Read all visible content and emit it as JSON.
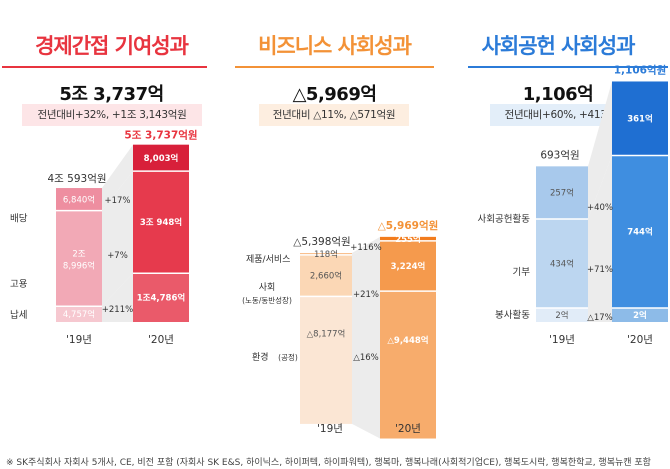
{
  "panels": [
    {
      "title": "경제간접 기여성과",
      "total": "5조 3,737억",
      "change": "전년대비+32%, +1조 3,143억원",
      "accent": "#e8343f",
      "badge_bg": "#fde5e7",
      "x_labels": [
        "'19년",
        "'20년"
      ],
      "year19_total": "4조 593억원",
      "year20_total": "5조 3,737억원",
      "categories": [
        "배당",
        "고용",
        "납세"
      ],
      "category_19": [
        "6,840억",
        "2조 8,996억",
        "4,757억"
      ],
      "category_20": [
        "8,003억",
        "3조 948억",
        "1조4,786억"
      ],
      "growth": [
        "+17%",
        "+7%",
        "+211%"
      ]
    },
    {
      "title": "비즈니스 사회성과",
      "total": "△5,969억",
      "change": "전년대비 △11%, △571억원",
      "accent": "#f39237",
      "badge_bg": "#fdeee0",
      "x_labels": [
        "'19년",
        "'20년"
      ],
      "year19_total": "△5,398억원",
      "year20_total": "△5,969억원",
      "categories": [
        "제품/서비스",
        "사회",
        "(노동/동반성장)",
        "환경",
        "(공정)"
      ],
      "category_19": [
        "118억",
        "2,660억",
        "△8,177억"
      ],
      "category_20": [
        "255억",
        "3,224억",
        "△9,448억"
      ],
      "growth": [
        "+116%",
        "+21%",
        "△16%"
      ]
    },
    {
      "title": "사회공헌 사회성과",
      "total": "1,106억",
      "change": "전년대비+60%, +413억원",
      "accent": "#2b7bd8",
      "badge_bg": "#e3eef9",
      "x_labels": [
        "'19년",
        "'20년"
      ],
      "year19_total": "693억원",
      "year20_total": "1,106억원",
      "categories": [
        "사회공헌활동",
        "기부",
        "봉사활동"
      ],
      "category_19": [
        "257억",
        "434억",
        "2억"
      ],
      "category_20": [
        "361억",
        "744억",
        "2억"
      ],
      "growth": [
        "+40%",
        "+71%",
        "△17%"
      ]
    }
  ],
  "footnote": "※ SK주식회사 자회사 5개사, CE, 비전 포함 (자회사 SK E&S, 하이닉스, 하이퍼텍, 하이파워텍), 행복마, 행복나래(사회적기업CE), 행복도시락, 행복한학교, 행복뉴캔 포함",
  "chart_data": [
    {
      "type": "bar",
      "title": "경제간접 기여성과",
      "categories": [
        "'19년",
        "'20년"
      ],
      "series": [
        {
          "name": "납세",
          "values": [
            4757,
            14786
          ]
        },
        {
          "name": "고용",
          "values": [
            28996,
            30948
          ]
        },
        {
          "name": "배당",
          "values": [
            6840,
            8003
          ]
        }
      ],
      "totals": [
        40593,
        53737
      ],
      "unit": "억원"
    },
    {
      "type": "bar",
      "title": "비즈니스 사회성과",
      "categories": [
        "'19년",
        "'20년"
      ],
      "series": [
        {
          "name": "제품/서비스",
          "values": [
            118,
            255
          ]
        },
        {
          "name": "사회",
          "values": [
            2660,
            3224
          ]
        },
        {
          "name": "환경",
          "values": [
            -8177,
            -9448
          ]
        }
      ],
      "totals": [
        -5398,
        -5969
      ],
      "unit": "억원"
    },
    {
      "type": "bar",
      "title": "사회공헌 사회성과",
      "categories": [
        "'19년",
        "'20년"
      ],
      "series": [
        {
          "name": "봉사활동",
          "values": [
            2,
            2
          ]
        },
        {
          "name": "기부",
          "values": [
            434,
            744
          ]
        },
        {
          "name": "사회공헌활동",
          "values": [
            257,
            361
          ]
        }
      ],
      "totals": [
        693,
        1106
      ],
      "unit": "억원"
    }
  ]
}
